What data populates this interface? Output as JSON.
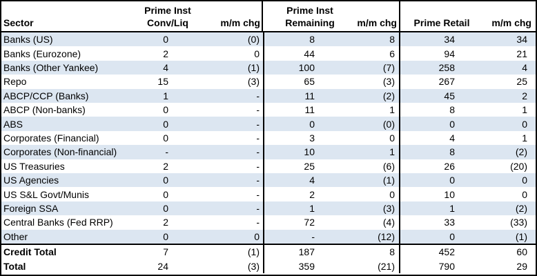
{
  "header": {
    "sector": "Sector",
    "prime_inst": "Prime Inst",
    "conv_liq": "Conv/Liq",
    "remaining": "Remaining",
    "prime_retail": "Prime Retail",
    "mm_chg": "m/m chg"
  },
  "columns": [
    "Sector",
    "Prime Inst Conv/Liq",
    "m/m chg",
    "Prime Inst Remaining",
    "m/m chg",
    "Prime Retail",
    "m/m chg"
  ],
  "colors": {
    "stripe": "#DCE6F1",
    "border": "#000000",
    "text": "#000000",
    "background": "#FFFFFF"
  },
  "rows": [
    {
      "sector": "Banks (US)",
      "values": [
        "0",
        "(0)",
        "8",
        "8",
        "34",
        "34"
      ],
      "shaded": true,
      "total": false
    },
    {
      "sector": "Banks (Eurozone)",
      "values": [
        "2",
        "0",
        "44",
        "6",
        "94",
        "21"
      ],
      "shaded": false,
      "total": false
    },
    {
      "sector": "Banks (Other Yankee)",
      "values": [
        "4",
        "(1)",
        "100",
        "(7)",
        "258",
        "4"
      ],
      "shaded": true,
      "total": false
    },
    {
      "sector": "Repo",
      "values": [
        "15",
        "(3)",
        "65",
        "(3)",
        "267",
        "25"
      ],
      "shaded": false,
      "total": false
    },
    {
      "sector": "ABCP/CCP (Banks)",
      "values": [
        "1",
        "-",
        "11",
        "(2)",
        "45",
        "2"
      ],
      "shaded": true,
      "total": false
    },
    {
      "sector": "ABCP (Non-banks)",
      "values": [
        "0",
        "-",
        "11",
        "1",
        "8",
        "1"
      ],
      "shaded": false,
      "total": false
    },
    {
      "sector": "ABS",
      "values": [
        "0",
        "-",
        "0",
        "(0)",
        "0",
        "0"
      ],
      "shaded": true,
      "total": false
    },
    {
      "sector": "Corporates (Financial)",
      "values": [
        "0",
        "-",
        "3",
        "0",
        "4",
        "1"
      ],
      "shaded": false,
      "total": false
    },
    {
      "sector": "Corporates (Non-financial)",
      "values": [
        "-",
        "-",
        "10",
        "1",
        "8",
        "(2)"
      ],
      "shaded": true,
      "total": false
    },
    {
      "sector": "US Treasuries",
      "values": [
        "2",
        "-",
        "25",
        "(6)",
        "26",
        "(20)"
      ],
      "shaded": false,
      "total": false
    },
    {
      "sector": "US Agencies",
      "values": [
        "0",
        "-",
        "4",
        "(1)",
        "0",
        "0"
      ],
      "shaded": true,
      "total": false
    },
    {
      "sector": "US S&L Govt/Munis",
      "values": [
        "0",
        "-",
        "2",
        "0",
        "10",
        "0"
      ],
      "shaded": false,
      "total": false
    },
    {
      "sector": "Foreign SSA",
      "values": [
        "0",
        "-",
        "1",
        "(3)",
        "1",
        "(2)"
      ],
      "shaded": true,
      "total": false
    },
    {
      "sector": "Central Banks (Fed RRP)",
      "values": [
        "2",
        "-",
        "72",
        "(4)",
        "33",
        "(33)"
      ],
      "shaded": false,
      "total": false
    },
    {
      "sector": "Other",
      "values": [
        "0",
        "0",
        "-",
        "(12)",
        "0",
        "(1)"
      ],
      "shaded": true,
      "total": false
    },
    {
      "sector": "Credit Total",
      "values": [
        "7",
        "(1)",
        "187",
        "8",
        "452",
        "60"
      ],
      "shaded": false,
      "total": true
    },
    {
      "sector": "Total",
      "values": [
        "24",
        "(3)",
        "359",
        "(21)",
        "790",
        "29"
      ],
      "shaded": false,
      "total": true
    }
  ]
}
